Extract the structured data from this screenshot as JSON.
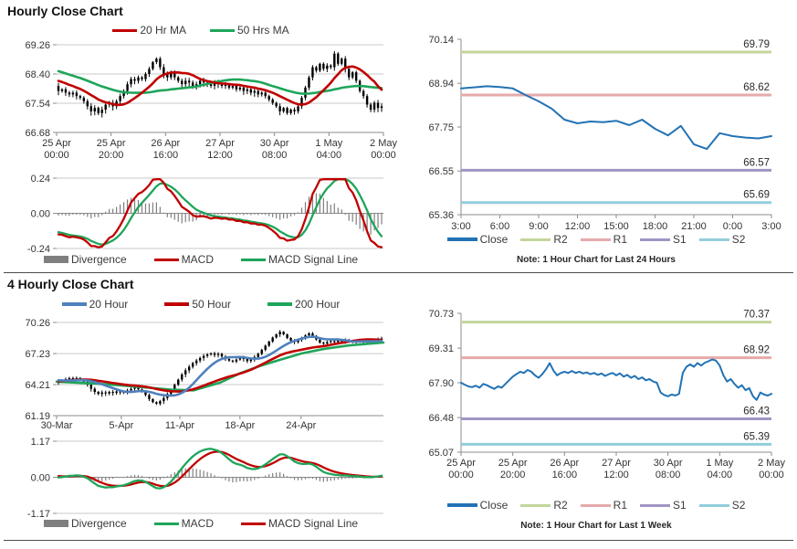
{
  "sections": {
    "hourly": {
      "title": "Hourly Close Chart"
    },
    "four_hourly": {
      "title": "4 Hourly Close Chart"
    }
  },
  "colors": {
    "candle": "#000000",
    "red_line": "#C00000",
    "green_line": "#1EA55A",
    "blue_ma": "#4F81BD",
    "close_blue": "#2272B4",
    "r2_olive": "#C3D69B",
    "r1_pink": "#E6AAAA",
    "s1_purple": "#A094C3",
    "s2_lightblue": "#92CDDC",
    "divergence_gray": "#7F7F7F",
    "gridline": "#C9C9C9",
    "axis": "#8C8C8C"
  },
  "chart_data": [
    {
      "id": "hourly-candle",
      "type": "candlestick",
      "y_ticks": [
        "69.26",
        "68.40",
        "67.54",
        "66.68"
      ],
      "x_ticks": [
        {
          "l1": "25 Apr",
          "l2": "00:00"
        },
        {
          "l1": "25 Apr",
          "l2": "20:00"
        },
        {
          "l1": "26 Apr",
          "l2": "16:00"
        },
        {
          "l1": "27 Apr",
          "l2": "12:00"
        },
        {
          "l1": "30 Apr",
          "l2": "08:00"
        },
        {
          "l1": "1 May",
          "l2": "04:00"
        },
        {
          "l1": "2 May",
          "l2": "00:00"
        }
      ],
      "wick_amp": 0.13,
      "pre_close": [
        69.0,
        68.95,
        68.9,
        68.85,
        68.9,
        68.8,
        68.75,
        68.8,
        68.7,
        68.65,
        68.7,
        68.6,
        68.55,
        68.6,
        68.5,
        68.55,
        68.45,
        68.5,
        68.4,
        68.45,
        68.35,
        68.3,
        68.35,
        68.25,
        68.3,
        68.2,
        68.25,
        68.15,
        68.1,
        68.15,
        68.05
      ],
      "close": [
        67.9,
        67.95,
        67.85,
        67.8,
        67.85,
        67.75,
        67.7,
        67.6,
        67.45,
        67.3,
        67.4,
        67.25,
        67.35,
        67.5,
        67.55,
        67.45,
        67.6,
        67.75,
        67.9,
        68.1,
        68.25,
        68.2,
        68.3,
        68.25,
        68.4,
        68.55,
        68.75,
        68.85,
        68.6,
        68.4,
        68.3,
        68.45,
        68.3,
        68.2,
        68.1,
        68.2,
        68.15,
        68.05,
        68.1,
        68.2,
        68.15,
        68.1,
        68.05,
        68.15,
        68.1,
        68.05,
        68.1,
        68.0,
        68.05,
        67.95,
        68.0,
        67.9,
        67.95,
        67.85,
        67.9,
        67.8,
        67.85,
        67.75,
        67.65,
        67.55,
        67.45,
        67.3,
        67.4,
        67.25,
        67.35,
        67.3,
        67.45,
        67.7,
        68.0,
        68.3,
        68.6,
        68.5,
        68.7,
        68.55,
        68.65,
        68.6,
        69.0,
        68.7,
        68.85,
        68.55,
        68.3,
        68.45,
        68.2,
        67.9,
        67.75,
        67.5,
        67.35,
        67.55,
        67.4,
        67.45
      ],
      "ma": [
        {
          "label": "20 Hr MA",
          "color": "#C00000",
          "window": 12
        },
        {
          "label": "50 Hrs MA",
          "color": "#1EA55A",
          "window": 31
        }
      ]
    },
    {
      "id": "hourly-macd",
      "type": "macd",
      "y_ticks": [
        "0.24",
        "0.00",
        "-0.24"
      ],
      "source": 0,
      "fast": 8,
      "slow": 17,
      "signal_w": 6,
      "legend": [
        {
          "label": "Divergence",
          "color": "#7F7F7F",
          "shape": "bar"
        },
        {
          "label": "MACD",
          "color": "#C00000",
          "shape": "line"
        },
        {
          "label": "MACD Signal Line",
          "color": "#1EA55A",
          "shape": "line"
        }
      ]
    },
    {
      "id": "hourly-pivot",
      "type": "line",
      "y_ticks": [
        "70.14",
        "68.94",
        "67.75",
        "66.55",
        "65.36"
      ],
      "x_ticks": [
        "3:00",
        "6:00",
        "9:00",
        "12:00",
        "15:00",
        "18:00",
        "21:00",
        "0:00",
        "3:00"
      ],
      "close_color": "#2272B4",
      "close": [
        68.8,
        68.83,
        68.86,
        68.84,
        68.8,
        68.62,
        68.45,
        68.25,
        67.95,
        67.85,
        67.9,
        67.88,
        67.92,
        67.8,
        67.95,
        67.7,
        67.52,
        67.78,
        67.28,
        67.15,
        67.58,
        67.5,
        67.46,
        67.44,
        67.5
      ],
      "levels": [
        {
          "name": "R2",
          "label": "69.79",
          "value": 69.79,
          "color": "#C3D69B"
        },
        {
          "name": "R1",
          "label": "68.62",
          "value": 68.62,
          "color": "#E6AAAA"
        },
        {
          "name": "S1",
          "label": "66.57",
          "value": 66.57,
          "color": "#A094C3"
        },
        {
          "name": "S2",
          "label": "65.69",
          "value": 65.69,
          "color": "#92CDDC"
        }
      ],
      "legend": [
        {
          "label": "Close",
          "color": "#2272B4"
        },
        {
          "label": "R2",
          "color": "#C3D69B"
        },
        {
          "label": "R1",
          "color": "#E6AAAA"
        },
        {
          "label": "S1",
          "color": "#A094C3"
        },
        {
          "label": "S2",
          "color": "#92CDDC"
        }
      ],
      "note": "Note: 1 Hour Chart for Last 24 Hours"
    },
    {
      "id": "four-hourly-candle",
      "type": "candlestick",
      "y_ticks": [
        "70.26",
        "67.23",
        "64.21",
        "61.19"
      ],
      "x_ticks": [
        {
          "label": "30-Mar",
          "f": 0.0
        },
        {
          "label": "5-Apr",
          "f": 0.198
        },
        {
          "label": "11-Apr",
          "f": 0.377
        },
        {
          "label": "18-Apr",
          "f": 0.561
        },
        {
          "label": "24-Apr",
          "f": 0.748
        }
      ],
      "wick_amp": 0.28,
      "pre_close": [
        63.6,
        63.7,
        63.8,
        63.9,
        64.0,
        64.1,
        64.2,
        64.3,
        64.4,
        64.5,
        64.6,
        64.7,
        64.8,
        64.9,
        65.0,
        65.0,
        64.95,
        64.9,
        64.85,
        64.8,
        64.75,
        64.7,
        64.65,
        64.6,
        64.55,
        64.5,
        64.5,
        64.45
      ],
      "close": [
        64.55,
        64.65,
        64.75,
        64.85,
        64.75,
        64.85,
        64.7,
        64.5,
        64.2,
        63.8,
        63.5,
        63.3,
        63.45,
        63.35,
        63.5,
        63.4,
        63.55,
        63.45,
        63.5,
        63.65,
        63.8,
        63.9,
        63.75,
        63.55,
        63.2,
        62.8,
        62.5,
        62.35,
        62.6,
        62.9,
        63.3,
        63.7,
        64.2,
        64.7,
        65.2,
        65.6,
        65.95,
        66.3,
        66.55,
        66.8,
        67.0,
        67.15,
        67.25,
        67.1,
        67.2,
        66.95,
        66.7,
        66.55,
        66.45,
        66.65,
        66.85,
        66.7,
        66.5,
        66.7,
        66.9,
        67.2,
        67.6,
        68.0,
        68.4,
        68.8,
        69.1,
        69.35,
        69.1,
        68.75,
        68.5,
        68.35,
        68.55,
        68.75,
        69.0,
        69.2,
        68.95,
        68.6,
        68.3,
        68.2,
        68.35,
        68.45,
        68.35,
        68.5,
        68.4,
        68.55,
        68.45,
        68.35,
        68.5,
        68.4,
        68.3,
        68.45,
        68.35,
        68.5,
        68.6,
        68.7
      ],
      "ma": [
        {
          "label": "20 Hour",
          "color": "#4F81BD",
          "window": 11
        },
        {
          "label": "50 Hour",
          "color": "#C00000",
          "window": 28
        },
        {
          "label": "200 Hour",
          "color": "#1EA55A",
          "points": [
            [
              0,
              64.5
            ],
            [
              0.15,
              64.25
            ],
            [
              0.25,
              64.0
            ],
            [
              0.35,
              63.72
            ],
            [
              0.42,
              63.65
            ],
            [
              0.5,
              64.4
            ],
            [
              0.56,
              65.3
            ],
            [
              0.62,
              66.0
            ],
            [
              0.68,
              66.6
            ],
            [
              0.75,
              67.25
            ],
            [
              0.82,
              67.7
            ],
            [
              0.9,
              68.05
            ],
            [
              1,
              68.3
            ]
          ]
        }
      ]
    },
    {
      "id": "four-hourly-macd",
      "type": "macd",
      "y_ticks": [
        "1.17",
        "0.00",
        "-1.17"
      ],
      "source": 3,
      "fast": 8,
      "slow": 17,
      "signal_w": 6,
      "legend": [
        {
          "label": "Divergence",
          "color": "#7F7F7F",
          "shape": "bar"
        },
        {
          "label": "MACD",
          "color": "#1EA55A",
          "shape": "line"
        },
        {
          "label": "MACD Signal Line",
          "color": "#C00000",
          "shape": "line"
        }
      ]
    },
    {
      "id": "four-hourly-pivot",
      "type": "line",
      "y_ticks": [
        "70.73",
        "69.31",
        "67.90",
        "66.48",
        "65.07"
      ],
      "x_ticks": [
        {
          "l1": "25 Apr",
          "l2": "00:00"
        },
        {
          "l1": "25 Apr",
          "l2": "20:00"
        },
        {
          "l1": "26 Apr",
          "l2": "16:00"
        },
        {
          "l1": "27 Apr",
          "l2": "12:00"
        },
        {
          "l1": "30 Apr",
          "l2": "08:00"
        },
        {
          "l1": "1 May",
          "l2": "04:00"
        },
        {
          "l1": "2 May",
          "l2": "00:00"
        }
      ],
      "close_color": "#2272B4",
      "close": [
        67.9,
        67.82,
        67.75,
        67.72,
        67.78,
        67.7,
        67.85,
        67.8,
        67.72,
        67.65,
        67.75,
        67.7,
        67.85,
        68.0,
        68.15,
        68.25,
        68.35,
        68.3,
        68.42,
        68.35,
        68.2,
        68.1,
        68.25,
        68.45,
        68.7,
        68.4,
        68.2,
        68.3,
        68.35,
        68.3,
        68.38,
        68.3,
        68.35,
        68.28,
        68.32,
        68.25,
        68.3,
        68.22,
        68.28,
        68.18,
        68.25,
        68.3,
        68.2,
        68.28,
        68.15,
        68.22,
        68.1,
        68.18,
        68.05,
        68.12,
        68.0,
        68.05,
        67.95,
        67.9,
        67.5,
        67.4,
        67.35,
        67.42,
        67.38,
        67.45,
        68.3,
        68.55,
        68.65,
        68.55,
        68.7,
        68.6,
        68.72,
        68.78,
        68.85,
        68.8,
        68.6,
        68.2,
        67.95,
        68.05,
        67.85,
        67.7,
        67.8,
        67.6,
        67.68,
        67.35,
        67.2,
        67.5,
        67.42,
        67.38,
        67.45
      ],
      "levels": [
        {
          "name": "R2",
          "label": "70.37",
          "value": 70.37,
          "color": "#C3D69B"
        },
        {
          "name": "R1",
          "label": "68.92",
          "value": 68.92,
          "color": "#E6AAAA"
        },
        {
          "name": "S1",
          "label": "66.43",
          "value": 66.43,
          "color": "#A094C3"
        },
        {
          "name": "S2",
          "label": "65.39",
          "value": 65.39,
          "color": "#92CDDC"
        }
      ],
      "legend": [
        {
          "label": "Close",
          "color": "#2272B4"
        },
        {
          "label": "R2",
          "color": "#C3D69B"
        },
        {
          "label": "R1",
          "color": "#E6AAAA"
        },
        {
          "label": "S1",
          "color": "#A094C3"
        },
        {
          "label": "S2",
          "color": "#92CDDC"
        }
      ],
      "note": "Note: 1 Hour Chart for Last 1 Week"
    }
  ]
}
